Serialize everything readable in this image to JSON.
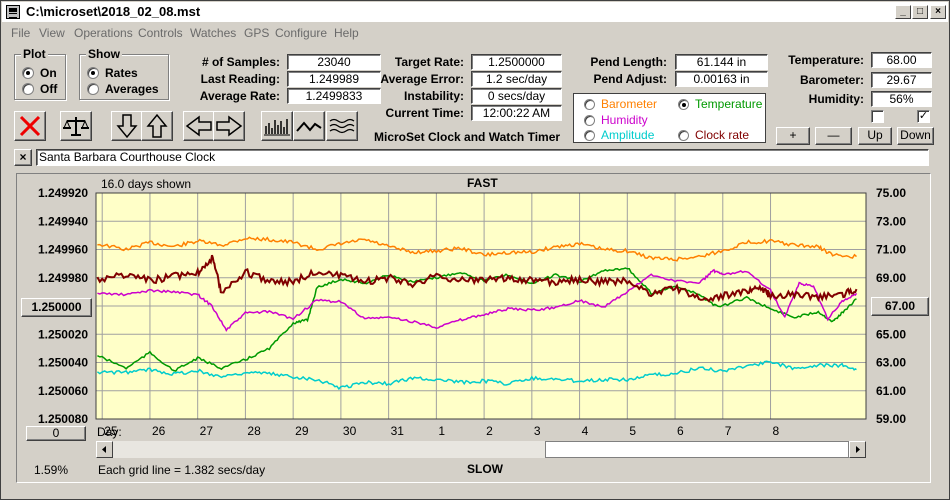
{
  "window": {
    "title": "C:\\microset\\2018_02_08.mst"
  },
  "menu": [
    "File",
    "View",
    "Operations",
    "Controls",
    "Watches",
    "GPS",
    "Configure",
    "Help"
  ],
  "plot_group": {
    "title": "Plot",
    "on": "On",
    "off": "Off",
    "selected": "On"
  },
  "show_group": {
    "title": "Show",
    "rates": "Rates",
    "averages": "Averages",
    "selected": "Rates"
  },
  "stats": {
    "samples_label": "# of Samples:",
    "samples": "23040",
    "last_label": "Last Reading:",
    "last": "1.249989",
    "avg_label": "Average Rate:",
    "avg": "1.2499833"
  },
  "rates": {
    "target_label": "Target Rate:",
    "target": "1.2500000",
    "avg_error_label": "Average Error:",
    "avg_error": "1.2 sec/day",
    "instability_label": "Instability:",
    "instability": "0 secs/day",
    "time_label": "Current Time:",
    "time": "12:00:22 AM"
  },
  "app_subtitle": "MicroSet Clock and Watch Timer",
  "pend": {
    "length_label": "Pend Length:",
    "length": "61.144 in",
    "adjust_label": "Pend Adjust:",
    "adjust": "0.00163 in"
  },
  "sources": {
    "barometer": "Barometer",
    "temperature": "Temperature",
    "humidity": "Humidity",
    "amplitude": "Amplitude",
    "clock_rate": "Clock rate",
    "selected": "Temperature",
    "colors": {
      "barometer": "#ff8000",
      "temperature": "#009900",
      "humidity": "#cc00cc",
      "amplitude": "#00cccc",
      "clock_rate": "#800000"
    }
  },
  "environment": {
    "temp_label": "Temperature:",
    "temp": "68.00",
    "baro_label": "Barometer:",
    "baro": "29.67",
    "hum_label": "Humidity:",
    "hum": "56%",
    "check1": false,
    "check2": true
  },
  "buttons": {
    "plus": "+",
    "minus": "—",
    "up": "Up",
    "down": "Down",
    "close_x": "×",
    "zero": "0",
    "center_left": "1.250000",
    "center_right": "67.00"
  },
  "toolbar_icons": [
    "clear-icon",
    "balance-icon",
    "arrow-down-icon",
    "arrow-up-icon",
    "arrow-left-icon",
    "arrow-right-icon",
    "bar-graph-icon",
    "line-graph-icon",
    "wave-graph-icon"
  ],
  "clock_name": "Santa Barbara Courthouse Clock",
  "graph": {
    "days_shown": "16.0 days shown",
    "fast": "FAST",
    "slow": "SLOW",
    "grid_note": "Each grid line = 1.382 secs/day",
    "percent": "1.59%",
    "day_prefix": "Day:"
  },
  "chart_data": {
    "type": "line",
    "title": "",
    "x_labels": [
      "25",
      "26",
      "27",
      "28",
      "29",
      "30",
      "31",
      "1",
      "2",
      "3",
      "4",
      "5",
      "6",
      "7",
      "8"
    ],
    "xlim_days": [
      24.87,
      41.0
    ],
    "left_axis": {
      "ticks": [
        "1.249920",
        "1.249940",
        "1.249960",
        "1.249980",
        "1.250000",
        "1.250020",
        "1.250040",
        "1.250060",
        "1.250080"
      ],
      "ylim": [
        1.24992,
        1.25008
      ],
      "inverted": true
    },
    "right_axis": {
      "ticks": [
        "75.00",
        "73.00",
        "71.00",
        "69.00",
        "67.00",
        "65.00",
        "63.00",
        "61.00",
        "59.00"
      ],
      "ylim": [
        59,
        75
      ]
    },
    "grid": true,
    "background": "#ffffc8",
    "series": [
      {
        "name": "Barometer",
        "axis": "right",
        "color": "#ff8000",
        "x": [
          24.9,
          25.5,
          26.0,
          26.5,
          27.0,
          27.5,
          28.0,
          28.5,
          29.0,
          29.5,
          30.0,
          30.5,
          31.0,
          31.5,
          32.0,
          32.5,
          33.0,
          33.5,
          34.0,
          34.5,
          35.0,
          35.5,
          36.0,
          36.5,
          37.0,
          37.5,
          38.0,
          38.5,
          39.0,
          39.5,
          40.0,
          40.3,
          40.8
        ],
        "y": [
          71.4,
          71.0,
          71.5,
          71.2,
          71.6,
          71.3,
          71.8,
          71.7,
          71.5,
          71.0,
          71.4,
          71.7,
          71.2,
          70.8,
          70.9,
          71.1,
          70.6,
          70.8,
          70.8,
          71.2,
          71.4,
          71.0,
          70.9,
          70.4,
          70.3,
          70.5,
          70.9,
          71.5,
          71.6,
          71.3,
          71.2,
          70.6,
          70.5
        ]
      },
      {
        "name": "Temperature",
        "axis": "right",
        "color": "#009900",
        "x": [
          24.9,
          25.5,
          26.0,
          26.5,
          27.0,
          27.5,
          28.0,
          28.5,
          29.0,
          29.3,
          29.5,
          30.0,
          30.5,
          31.0,
          31.5,
          32.0,
          32.5,
          33.0,
          33.5,
          34.0,
          34.5,
          35.0,
          35.5,
          36.0,
          36.5,
          37.0,
          37.5,
          37.9,
          38.5,
          39.0,
          39.5,
          40.0,
          40.3,
          40.5,
          40.8
        ],
        "y": [
          63.5,
          62.6,
          63.7,
          62.4,
          63.3,
          62.6,
          63.2,
          64.0,
          65.8,
          66.0,
          68.3,
          68.9,
          68.6,
          69.2,
          68.7,
          69.0,
          69.4,
          68.8,
          69.2,
          68.6,
          69.2,
          68.7,
          69.5,
          69.7,
          67.9,
          68.4,
          67.8,
          66.9,
          67.6,
          66.8,
          66.2,
          66.6,
          65.9,
          66.5,
          67.5
        ]
      },
      {
        "name": "Humidity",
        "axis": "left",
        "color": "#cc00cc",
        "x": [
          24.9,
          25.5,
          26.0,
          26.5,
          27.0,
          27.3,
          27.6,
          28.0,
          28.5,
          29.0,
          29.5,
          30.0,
          30.5,
          31.0,
          31.5,
          32.0,
          32.5,
          33.0,
          33.5,
          34.0,
          34.5,
          35.0,
          35.5,
          36.0,
          36.5,
          37.0,
          37.5,
          37.8,
          38.0,
          38.5,
          39.0,
          39.3,
          39.6,
          39.9,
          40.2,
          40.5,
          40.8
        ],
        "y": [
          1.249991,
          1.249992,
          1.249989,
          1.24999,
          1.249992,
          1.25,
          1.250017,
          1.250005,
          1.250004,
          1.250009,
          1.249996,
          1.249997,
          1.250009,
          1.250008,
          1.250011,
          1.250015,
          1.25001,
          1.250006,
          1.250002,
          1.250003,
          1.250001,
          1.249996,
          1.250001,
          1.24999,
          1.249978,
          1.249982,
          1.249984,
          1.249975,
          1.249978,
          1.249975,
          1.249989,
          1.250008,
          1.249984,
          1.249986,
          1.250009,
          1.249997,
          1.249991
        ]
      },
      {
        "name": "Amplitude",
        "axis": "right",
        "color": "#00cccc",
        "x": [
          24.9,
          25.5,
          26.0,
          26.5,
          27.0,
          27.5,
          28.0,
          28.5,
          29.0,
          29.5,
          30.0,
          30.5,
          31.0,
          31.5,
          32.0,
          32.5,
          33.0,
          33.5,
          34.0,
          34.5,
          35.0,
          35.5,
          36.0,
          36.5,
          37.0,
          37.5,
          38.0,
          38.5,
          39.0,
          39.5,
          40.0,
          40.5,
          40.8
        ],
        "y": [
          62.3,
          62.3,
          62.5,
          62.2,
          62.4,
          62.0,
          62.3,
          62.2,
          62.0,
          61.8,
          61.2,
          61.6,
          61.5,
          61.9,
          61.8,
          61.6,
          61.7,
          61.5,
          61.9,
          61.8,
          61.7,
          61.8,
          61.8,
          62.1,
          62.2,
          62.6,
          62.4,
          62.8,
          63.0,
          62.6,
          62.8,
          62.8,
          62.5
        ]
      },
      {
        "name": "Clock rate",
        "axis": "left",
        "color": "#800000",
        "x": [
          24.9,
          25.5,
          26.0,
          26.5,
          27.0,
          27.3,
          27.5,
          28.0,
          28.5,
          29.0,
          29.5,
          30.0,
          30.5,
          31.0,
          31.5,
          32.0,
          32.5,
          33.0,
          33.5,
          34.0,
          34.5,
          35.0,
          35.5,
          36.0,
          36.5,
          37.0,
          37.5,
          38.0,
          38.5,
          38.8,
          39.0,
          39.5,
          40.0,
          40.5,
          40.8
        ],
        "y": [
          1.249981,
          1.249978,
          1.249982,
          1.249979,
          1.249976,
          1.249966,
          1.24999,
          1.249976,
          1.249982,
          1.249983,
          1.249975,
          1.249979,
          1.249983,
          1.24998,
          1.249984,
          1.249979,
          1.249982,
          1.249981,
          1.24998,
          1.249982,
          1.249983,
          1.249981,
          1.249983,
          1.249982,
          1.249992,
          1.249987,
          1.249995,
          1.249993,
          1.24999,
          1.249987,
          1.249993,
          1.249992,
          1.249994,
          1.249992,
          1.249988
        ]
      }
    ]
  }
}
